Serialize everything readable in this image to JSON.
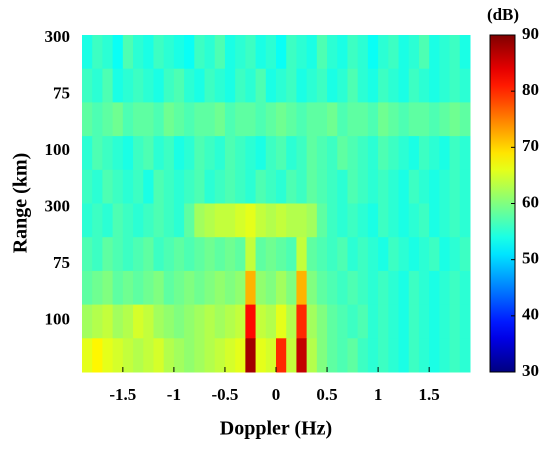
{
  "chart_data": {
    "type": "heatmap",
    "xlabel": "Doppler (Hz)",
    "ylabel": "Range (km)",
    "colorbar_label": "(dB)",
    "xlim": [
      -1.9,
      1.9
    ],
    "xticks": [
      -1.5,
      -1,
      -0.5,
      0,
      0.5,
      1,
      1.5
    ],
    "y_labels": [
      "300",
      "75",
      "100",
      "300",
      "75",
      "100"
    ],
    "clim": [
      30,
      90
    ],
    "colorbar_ticks": [
      30,
      40,
      50,
      60,
      70,
      80,
      90
    ],
    "colormap": "jet",
    "z": [
      [
        54,
        56,
        55,
        53,
        57,
        55,
        54,
        56,
        55,
        54,
        53,
        56,
        55,
        57,
        54,
        55,
        56,
        54,
        55,
        53,
        56,
        55,
        54,
        57,
        55,
        54,
        56,
        55,
        53,
        55,
        56,
        54,
        55,
        57,
        54,
        55,
        56,
        54
      ],
      [
        56,
        55,
        57,
        54,
        55,
        56,
        55,
        54,
        56,
        57,
        55,
        54,
        56,
        55,
        54,
        56,
        55,
        57,
        54,
        55,
        56,
        54,
        55,
        56,
        54,
        55,
        57,
        55,
        54,
        56,
        55,
        54,
        56,
        55,
        54,
        55,
        56,
        55
      ],
      [
        58,
        57,
        58,
        59,
        57,
        58,
        58,
        57,
        59,
        58,
        57,
        58,
        58,
        59,
        57,
        58,
        58,
        57,
        58,
        59,
        58,
        57,
        58,
        58,
        59,
        57,
        58,
        58,
        57,
        59,
        58,
        57,
        58,
        58,
        57,
        58,
        59,
        58
      ],
      [
        55,
        57,
        56,
        55,
        54,
        56,
        57,
        55,
        56,
        54,
        55,
        57,
        56,
        55,
        57,
        56,
        55,
        54,
        56,
        57,
        55,
        56,
        58,
        57,
        56,
        58,
        57,
        56,
        55,
        57,
        56,
        55,
        54,
        56,
        55,
        54,
        56,
        55
      ],
      [
        56,
        55,
        57,
        56,
        55,
        56,
        54,
        57,
        56,
        55,
        56,
        57,
        55,
        56,
        57,
        56,
        55,
        57,
        56,
        55,
        57,
        56,
        58,
        57,
        56,
        55,
        57,
        56,
        55,
        56,
        55,
        54,
        56,
        55,
        54,
        55,
        56,
        55
      ],
      [
        55,
        56,
        55,
        57,
        56,
        55,
        56,
        57,
        56,
        55,
        58,
        62,
        63,
        64,
        64,
        65,
        66,
        64,
        63,
        64,
        63,
        63,
        62,
        58,
        56,
        55,
        56,
        55,
        54,
        56,
        55,
        54,
        55,
        56,
        54,
        55,
        56,
        55
      ],
      [
        57,
        56,
        58,
        57,
        56,
        57,
        58,
        56,
        57,
        58,
        57,
        58,
        59,
        58,
        59,
        58,
        64,
        58,
        59,
        58,
        57,
        64,
        58,
        57,
        56,
        57,
        55,
        56,
        55,
        54,
        56,
        55,
        54,
        55,
        56,
        54,
        55,
        56
      ],
      [
        58,
        59,
        60,
        58,
        59,
        58,
        59,
        60,
        58,
        59,
        60,
        59,
        60,
        61,
        60,
        61,
        72,
        61,
        60,
        62,
        60,
        72,
        60,
        58,
        57,
        56,
        57,
        56,
        55,
        56,
        55,
        54,
        56,
        55,
        54,
        55,
        56,
        55
      ],
      [
        62,
        63,
        64,
        62,
        63,
        65,
        64,
        62,
        61,
        60,
        61,
        62,
        63,
        62,
        63,
        64,
        82,
        64,
        63,
        66,
        63,
        80,
        62,
        60,
        58,
        57,
        56,
        57,
        55,
        56,
        55,
        54,
        56,
        55,
        54,
        55,
        56,
        55
      ],
      [
        66,
        68,
        66,
        65,
        64,
        63,
        64,
        65,
        63,
        62,
        61,
        62,
        63,
        64,
        65,
        66,
        88,
        66,
        65,
        80,
        64,
        86,
        63,
        60,
        58,
        57,
        58,
        56,
        55,
        56,
        55,
        54,
        56,
        55,
        54,
        55,
        56,
        55
      ]
    ]
  }
}
